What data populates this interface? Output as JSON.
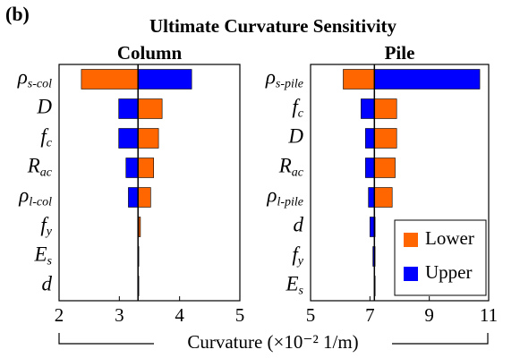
{
  "label": "(b)",
  "title": "Ultimate Curvature Sensitivity",
  "xlabel": "Curvature (×10⁻² 1/m)",
  "chart_data": [
    {
      "type": "tornado",
      "title": "Column",
      "categories": [
        "ρ",
        "D",
        "f",
        "R",
        "ρ",
        "f",
        "E",
        "d"
      ],
      "category_subscripts": [
        "s-col",
        null,
        "c",
        "ac",
        "l-col",
        "y",
        "s",
        null
      ],
      "baseline": 3.31,
      "series": [
        {
          "name": "Lower",
          "color": "#ff6600",
          "values": [
            2.37,
            3.71,
            3.65,
            3.57,
            3.52,
            3.35,
            3.32,
            3.32
          ]
        },
        {
          "name": "Upper",
          "color": "#0000ff",
          "values": [
            4.2,
            2.99,
            2.99,
            3.11,
            3.15,
            3.31,
            3.31,
            3.31
          ]
        }
      ],
      "xlim": [
        2,
        5
      ],
      "xticks": [
        2,
        3,
        4,
        5
      ]
    },
    {
      "type": "tornado",
      "title": "Pile",
      "categories": [
        "ρ",
        "f",
        "D",
        "R",
        "ρ",
        "d",
        "f",
        "E"
      ],
      "category_subscripts": [
        "s-pile",
        "c",
        null,
        "ac",
        "l-pile",
        null,
        "y",
        "s"
      ],
      "baseline": 7.15,
      "series": [
        {
          "name": "Lower",
          "color": "#ff6600",
          "values": [
            6.1,
            7.9,
            7.9,
            7.85,
            7.75,
            7.15,
            7.15,
            7.15
          ]
        },
        {
          "name": "Upper",
          "color": "#0000ff",
          "values": [
            10.7,
            6.7,
            6.85,
            6.85,
            6.95,
            7.0,
            7.1,
            7.15
          ]
        }
      ],
      "xlim": [
        5,
        11
      ],
      "xticks": [
        5,
        7,
        9,
        11
      ],
      "legend": "lower right"
    }
  ]
}
